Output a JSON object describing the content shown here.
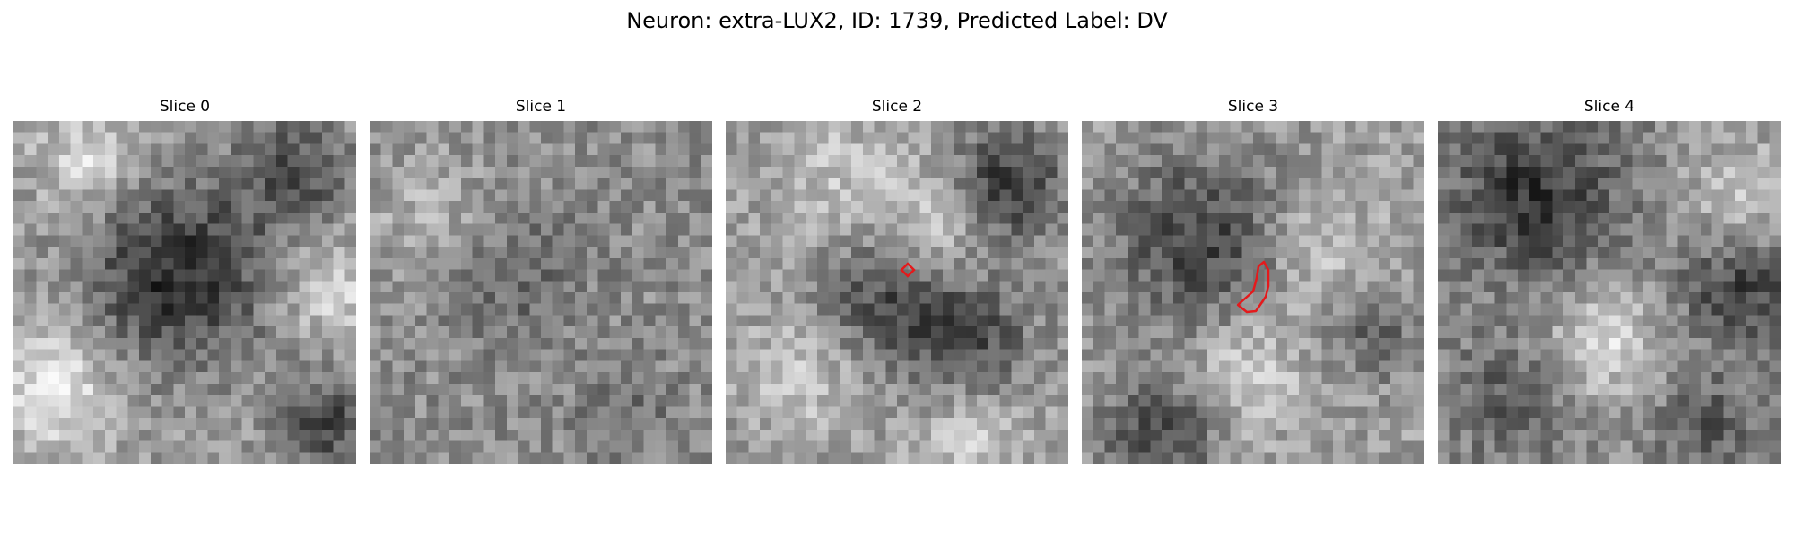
{
  "figure": {
    "title": "Neuron: extra-LUX2, ID: 1739, Predicted Label: DV"
  },
  "panels": [
    {
      "title": "Slice 0",
      "seed": 11,
      "pattern": "s0"
    },
    {
      "title": "Slice 1",
      "seed": 23,
      "pattern": "s1"
    },
    {
      "title": "Slice 2",
      "seed": 37,
      "pattern": "s2"
    },
    {
      "title": "Slice 3",
      "seed": 41,
      "pattern": "s3"
    },
    {
      "title": "Slice 4",
      "seed": 59,
      "pattern": "s4"
    }
  ],
  "style": {
    "roi_color": "#e41a1c"
  }
}
